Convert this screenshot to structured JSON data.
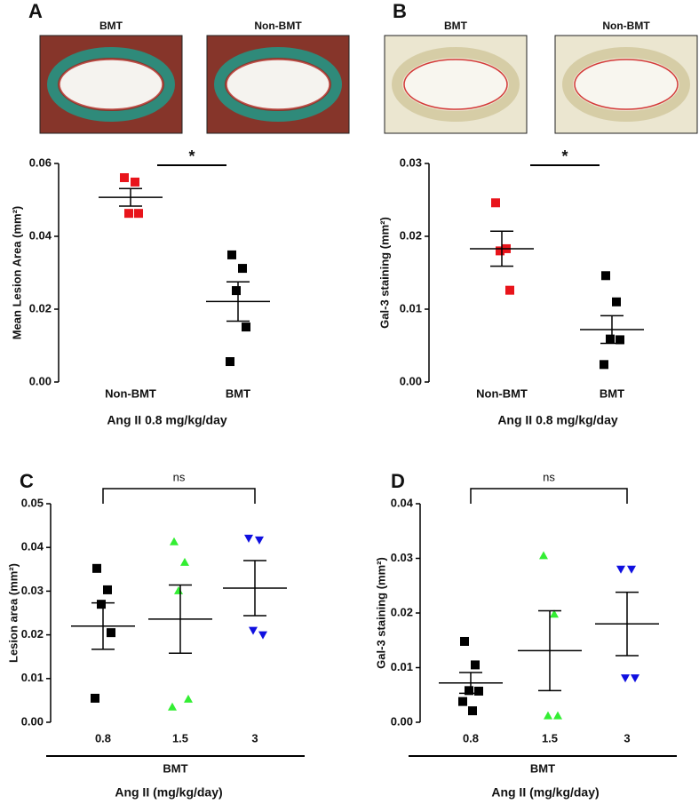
{
  "chart_data": [
    {
      "type": "dot",
      "panel": "A",
      "ylabel": "Mean Lesion Area (mm²)",
      "xlabel": "Ang II 0.8 mg/kg/day",
      "images": [
        {
          "label": "BMT"
        },
        {
          "label": "Non-BMT"
        }
      ],
      "ylim": [
        0,
        0.06
      ],
      "yticks": [
        {
          "value": 0,
          "label": "0.00"
        },
        0.02,
        0.04,
        0.06
      ],
      "annotation": "*",
      "series": [
        {
          "name": "Non-BMT",
          "color": "#e8141b",
          "marker": "square",
          "values": [
            0.0561,
            0.0549,
            0.0463,
            0.0463
          ],
          "mean": 0.0507,
          "sem": 0.0024
        },
        {
          "name": "BMT",
          "color": "#000000",
          "marker": "square",
          "values": [
            0.0349,
            0.0312,
            0.0251,
            0.0151,
            0.0056
          ],
          "mean": 0.0221,
          "sem": 0.0054
        }
      ]
    },
    {
      "type": "dot",
      "panel": "B",
      "ylabel": "Gal-3 staining (mm²)",
      "xlabel": "Ang II 0.8 mg/kg/day",
      "images": [
        {
          "label": "BMT"
        },
        {
          "label": "Non-BMT"
        }
      ],
      "ylim": [
        0,
        0.03
      ],
      "yticks": [
        {
          "value": 0,
          "label": "0.00"
        },
        0.01,
        0.02,
        0.03
      ],
      "annotation": "*",
      "series": [
        {
          "name": "Non-BMT",
          "color": "#e8141b",
          "marker": "square",
          "values": [
            0.0246,
            0.0183,
            0.018,
            0.0126
          ],
          "mean": 0.0183,
          "sem": 0.0024
        },
        {
          "name": "BMT",
          "color": "#000000",
          "marker": "square",
          "values": [
            0.0146,
            0.011,
            0.0059,
            0.0058,
            0.0024
          ],
          "mean": 0.0072,
          "sem": 0.0019
        }
      ]
    },
    {
      "type": "dot",
      "panel": "C",
      "ylabel": "Lesion area (mm²)",
      "xlabel": "Ang II (mg/kg/day)",
      "group_label": "BMT",
      "ylim": [
        0,
        0.05
      ],
      "yticks": [
        {
          "value": 0,
          "label": "0.00"
        },
        0.01,
        0.02,
        0.03,
        0.04,
        0.05
      ],
      "annotation": "ns",
      "series": [
        {
          "name": "0.8",
          "color": "#000000",
          "marker": "square",
          "values": [
            0.0352,
            0.0303,
            0.027,
            0.0205,
            0.0055
          ],
          "mean": 0.022,
          "sem": 0.0053
        },
        {
          "name": "1.5",
          "color": "#33ee33",
          "marker": "triangle-up",
          "values": [
            0.0413,
            0.0366,
            0.0301,
            0.0053,
            0.0035
          ],
          "mean": 0.0236,
          "sem": 0.0078
        },
        {
          "name": "3",
          "color": "#1010e0",
          "marker": "triangle-down",
          "values": [
            0.0421,
            0.0417,
            0.021,
            0.02
          ],
          "mean": 0.0307,
          "sem": 0.0063
        }
      ]
    },
    {
      "type": "dot",
      "panel": "D",
      "ylabel": "Gal-3 staining (mm²)",
      "xlabel": "Ang II (mg/kg/day)",
      "group_label": "BMT",
      "ylim": [
        0,
        0.04
      ],
      "yticks": [
        {
          "value": 0,
          "label": "0.00"
        },
        0.01,
        0.02,
        0.03,
        0.04
      ],
      "annotation": "ns",
      "series": [
        {
          "name": "0.8",
          "color": "#000000",
          "marker": "square",
          "values": [
            0.0148,
            0.0105,
            0.0058,
            0.0057,
            0.0038,
            0.0021
          ],
          "mean": 0.0072,
          "sem": 0.0019
        },
        {
          "name": "1.5",
          "color": "#33ee33",
          "marker": "triangle-up",
          "values": [
            0.0305,
            0.0198,
            0.0012,
            0.0012
          ],
          "mean": 0.0131,
          "sem": 0.0073
        },
        {
          "name": "3",
          "color": "#1010e0",
          "marker": "triangle-down",
          "values": [
            0.028,
            0.028,
            0.0081,
            0.0081
          ],
          "mean": 0.018,
          "sem": 0.0058
        }
      ]
    }
  ]
}
